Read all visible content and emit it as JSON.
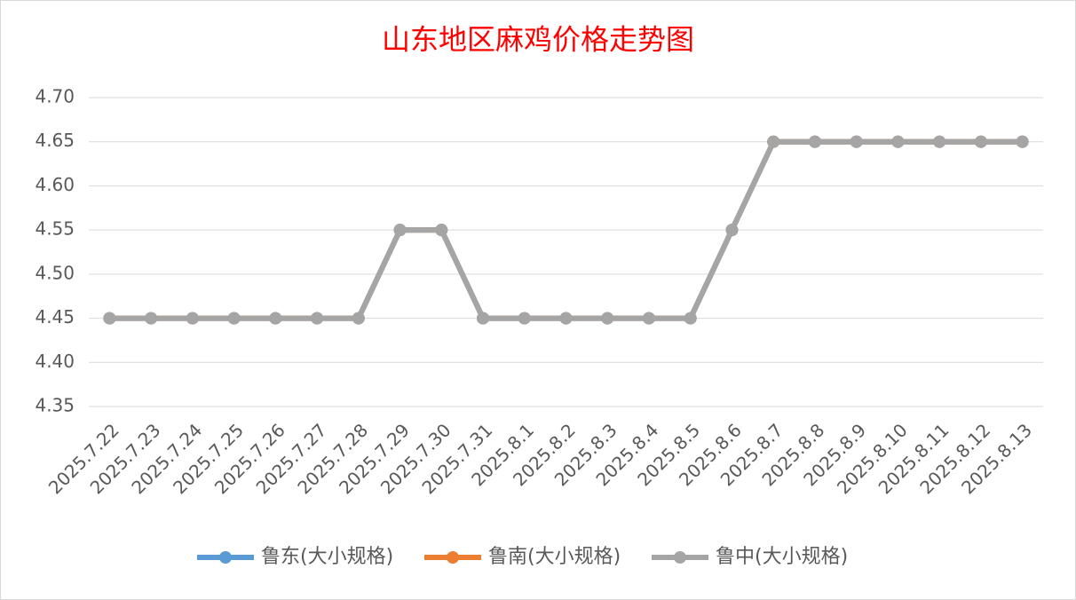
{
  "chart_data": {
    "type": "line",
    "title": "山东地区麻鸡价格走势图",
    "categories": [
      "2025.7.22",
      "2025.7.23",
      "2025.7.24",
      "2025.7.25",
      "2025.7.26",
      "2025.7.27",
      "2025.7.28",
      "2025.7.29",
      "2025.7.30",
      "2025.7.31",
      "2025.8.1",
      "2025.8.2",
      "2025.8.3",
      "2025.8.4",
      "2025.8.5",
      "2025.8.6",
      "2025.8.7",
      "2025.8.8",
      "2025.8.9",
      "2025.8.10",
      "2025.8.11",
      "2025.8.12",
      "2025.8.13"
    ],
    "series": [
      {
        "name": "鲁东(大小规格)",
        "color": "#5b9bd5",
        "values": [
          4.45,
          4.45,
          4.45,
          4.45,
          4.45,
          4.45,
          4.45,
          4.55,
          4.55,
          4.45,
          4.45,
          4.45,
          4.45,
          4.45,
          4.45,
          4.55,
          4.65,
          4.65,
          4.65,
          4.65,
          4.65,
          4.65,
          4.65
        ]
      },
      {
        "name": "鲁南(大小规格)",
        "color": "#ed7d31",
        "values": [
          4.45,
          4.45,
          4.45,
          4.45,
          4.45,
          4.45,
          4.45,
          4.55,
          4.55,
          4.45,
          4.45,
          4.45,
          4.45,
          4.45,
          4.45,
          4.55,
          4.65,
          4.65,
          4.65,
          4.65,
          4.65,
          4.65,
          4.65
        ]
      },
      {
        "name": "鲁中(大小规格)",
        "color": "#a5a5a5",
        "values": [
          4.45,
          4.45,
          4.45,
          4.45,
          4.45,
          4.45,
          4.45,
          4.55,
          4.55,
          4.45,
          4.45,
          4.45,
          4.45,
          4.45,
          4.45,
          4.55,
          4.65,
          4.65,
          4.65,
          4.65,
          4.65,
          4.65,
          4.65
        ]
      }
    ],
    "ylim": [
      4.35,
      4.7
    ],
    "yticks": [
      4.35,
      {
        "value": 4.4,
        "label": "4.40"
      },
      4.45,
      {
        "value": 4.5,
        "label": "4.50"
      },
      4.55,
      {
        "value": 4.6,
        "label": "4.60"
      },
      4.65,
      {
        "value": 4.7,
        "label": "4.70"
      }
    ],
    "grid": true,
    "legend": "bottom"
  }
}
